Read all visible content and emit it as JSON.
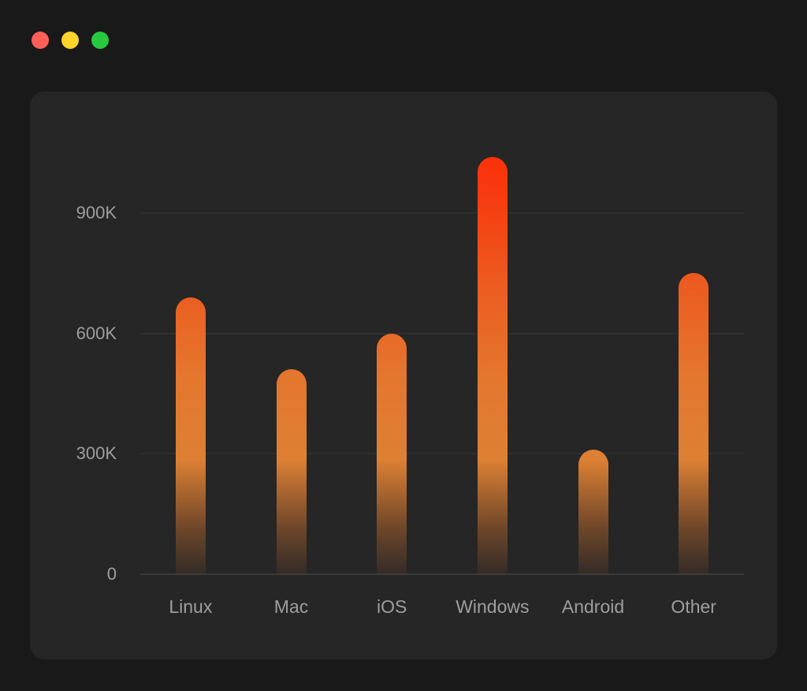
{
  "window": {
    "traffic_lights": [
      {
        "name": "close",
        "color": "#ff5f57"
      },
      {
        "name": "minimize",
        "color": "#fdd32c"
      },
      {
        "name": "zoom",
        "color": "#28c840"
      }
    ]
  },
  "chart_data": {
    "type": "bar",
    "title": "",
    "categories": [
      "Linux",
      "Mac",
      "iOS",
      "Windows",
      "Android",
      "Other"
    ],
    "values": [
      690,
      510,
      600,
      1040,
      310,
      750
    ],
    "value_unit": "K",
    "xlabel": "",
    "ylabel": "",
    "ylim": [
      0,
      1100
    ],
    "yticks": [
      {
        "value": 0,
        "label": "0"
      },
      {
        "value": 300,
        "label": "300K"
      },
      {
        "value": 600,
        "label": "600K"
      },
      {
        "value": 900,
        "label": "900K"
      }
    ],
    "grid": true,
    "legend": false,
    "bar_gradient_bottom_to_top": [
      {
        "pos": 0,
        "color": "rgba(146,84,40,0.12)"
      },
      {
        "pos": 10,
        "color": "rgba(165,95,44,0.55)"
      },
      {
        "pos": 26,
        "color": "#dd8034"
      },
      {
        "pos": 45,
        "color": "#e4762e"
      },
      {
        "pos": 65,
        "color": "#ec5c20"
      },
      {
        "pos": 85,
        "color": "#f63c10"
      },
      {
        "pos": 100,
        "color": "#ff2b06"
      }
    ]
  },
  "colors": {
    "page_background": "#191919",
    "panel_background": "#262626",
    "gridline": "#383838",
    "axis_line": "#4f4f4f",
    "tick_label": "#9e9e9e"
  }
}
